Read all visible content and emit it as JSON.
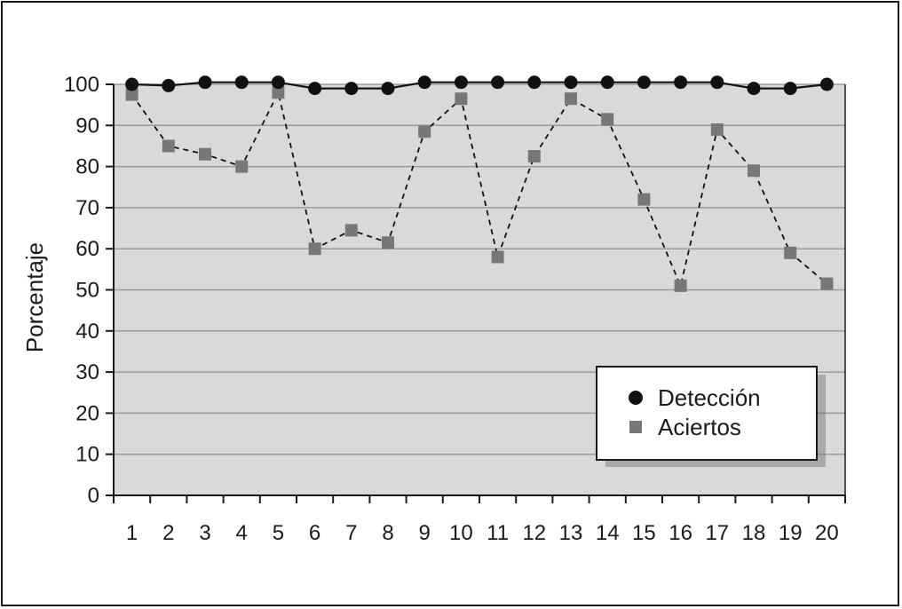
{
  "chart_data": {
    "type": "line",
    "title": "",
    "xlabel": "",
    "ylabel": "Porcentaje",
    "x": [
      1,
      2,
      3,
      4,
      5,
      6,
      7,
      8,
      9,
      10,
      11,
      12,
      13,
      14,
      15,
      16,
      17,
      18,
      19,
      20
    ],
    "ylim": [
      0,
      100
    ],
    "yticks": [
      0,
      10,
      20,
      30,
      40,
      50,
      60,
      70,
      80,
      90,
      100
    ],
    "grid": true,
    "legend_position": "lower-right",
    "series": [
      {
        "name": "Detección",
        "marker": "circle",
        "line": "solid",
        "color": "#111111",
        "values": [
          100,
          99.7,
          100.5,
          100.5,
          100.5,
          99,
          99,
          99,
          100.5,
          100.5,
          100.5,
          100.5,
          100.5,
          100.5,
          100.5,
          100.5,
          100.5,
          99,
          99,
          100
        ]
      },
      {
        "name": "Aciertos",
        "marker": "square",
        "line": "dashed",
        "color": "#777777",
        "values": [
          97.5,
          85,
          83,
          80,
          98,
          60,
          64.5,
          61.5,
          88.5,
          96.5,
          58,
          82.5,
          96.5,
          91.5,
          72,
          51,
          89,
          79,
          59,
          51.5
        ]
      }
    ]
  },
  "colors": {
    "plot_background": "#d9d9d9",
    "gridline": "#9a9a9a",
    "axis": "#1a1a1a"
  }
}
